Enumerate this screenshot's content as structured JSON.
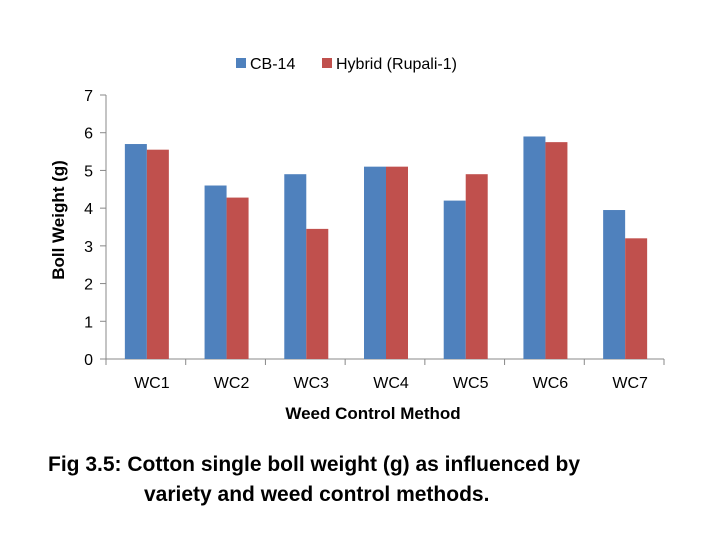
{
  "chart_data": {
    "type": "bar",
    "title": "",
    "xlabel": "Weed Control Method",
    "ylabel": "Boll Weight (g)",
    "ylim": [
      0,
      7
    ],
    "yticks": [
      0,
      1,
      2,
      3,
      4,
      5,
      6,
      7
    ],
    "grid": false,
    "legend_position": "top",
    "categories": [
      "WC1",
      "WC2",
      "WC3",
      "WC4",
      "WC5",
      "WC6",
      "WC7"
    ],
    "series": [
      {
        "name": "CB-14",
        "color": "#4F81BD",
        "values": [
          5.7,
          4.6,
          4.9,
          5.1,
          4.2,
          5.9,
          3.95
        ]
      },
      {
        "name": "Hybrid (Rupali-1)",
        "color": "#C0504D",
        "values": [
          5.55,
          4.28,
          3.45,
          5.1,
          4.9,
          5.75,
          3.2
        ]
      }
    ]
  },
  "caption": {
    "line1": "Fig 3.5: Cotton single boll weight (g) as influenced by",
    "line2": "variety and weed control methods."
  }
}
